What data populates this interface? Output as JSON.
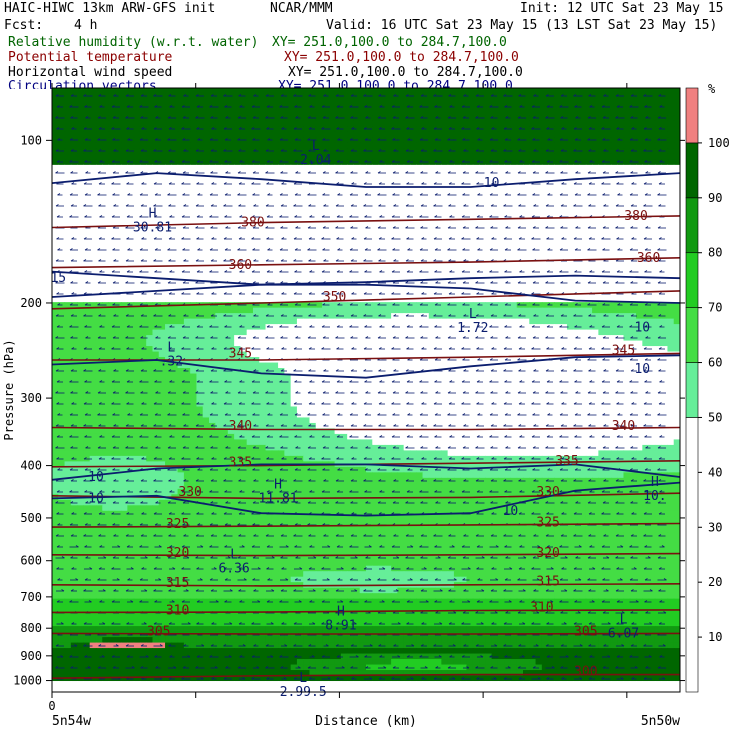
{
  "header": {
    "model": "HAIC-HIWC 13km ARW-GFS init",
    "org": "NCAR/MMM",
    "init": "Init: 12 UTC Sat 23 May 15",
    "fcst_label": "Fcst:",
    "fcst_value": "4 h",
    "valid": "Valid: 16 UTC Sat 23 May 15 (13 LST Sat 23 May 15)"
  },
  "fields": [
    {
      "name": "Relative humidity (w.r.t. water)",
      "xy": "XY= 251.0,100.0 to 284.7,100.0",
      "color": "#006400"
    },
    {
      "name": "Potential temperature",
      "xy": "XY= 251.0,100.0 to 284.7,100.0",
      "color": "#8b0000"
    },
    {
      "name": "Horizontal wind speed",
      "xy": "XY= 251.0,100.0 to 284.7,100.0",
      "color": "#000000"
    },
    {
      "name": "Circulation vectors",
      "xy": "XY= 251.0,100.0 to 284.7,100.0",
      "color": "#000080"
    }
  ],
  "chart_data": {
    "type": "heatmap",
    "title": "",
    "ylabel": "Pressure (hPa)",
    "xlabel": "Distance (km)",
    "x_start_value": "0",
    "x_left_label": "5n54w",
    "x_right_label": "5n50w",
    "y_scale": "log-pressure",
    "ylim": [
      1050,
      80
    ],
    "yticks": [
      100,
      200,
      300,
      400,
      500,
      600,
      700,
      800,
      900,
      1000
    ],
    "colorbar": {
      "unit": "%",
      "ticks": [
        10,
        20,
        30,
        40,
        50,
        60,
        70,
        80,
        90,
        100
      ],
      "bands": [
        {
          "from": 0,
          "to": 50,
          "color": "#ffffff"
        },
        {
          "from": 50,
          "to": 60,
          "color": "#66ee99"
        },
        {
          "from": 60,
          "to": 70,
          "color": "#44dd44"
        },
        {
          "from": 70,
          "to": 80,
          "color": "#22cc22"
        },
        {
          "from": 80,
          "to": 90,
          "color": "#119911"
        },
        {
          "from": 90,
          "to": 100,
          "color": "#006600"
        },
        {
          "from": 100,
          "to": 110,
          "color": "#f08080"
        }
      ]
    },
    "theta_contours": [
      {
        "value": "300",
        "p": [
          990,
          980,
          975,
          975
        ],
        "label_x": 0.85,
        "label_p": 962
      },
      {
        "value": "305",
        "p": [
          818,
          820,
          820,
          818
        ],
        "label_x": 0.17,
        "label_p": 812
      },
      {
        "value": "305",
        "p": [
          818,
          820,
          820,
          818
        ],
        "label_x": 0.85,
        "label_p": 812
      },
      {
        "value": "310",
        "p": [
          748,
          747,
          742,
          740
        ],
        "label_x": 0.2,
        "label_p": 742
      },
      {
        "value": "310",
        "p": [
          748,
          747,
          742,
          740
        ],
        "label_x": 0.78,
        "label_p": 732
      },
      {
        "value": "315",
        "p": [
          665,
          668,
          665,
          662
        ],
        "label_x": 0.2,
        "label_p": 660
      },
      {
        "value": "315",
        "p": [
          665,
          668,
          665,
          662
        ],
        "label_x": 0.79,
        "label_p": 655
      },
      {
        "value": "320",
        "p": [
          585,
          587,
          585,
          582
        ],
        "label_x": 0.2,
        "label_p": 580
      },
      {
        "value": "320",
        "p": [
          585,
          587,
          585,
          582
        ],
        "label_x": 0.79,
        "label_p": 580
      },
      {
        "value": "325",
        "p": [
          520,
          518,
          515,
          512
        ],
        "label_x": 0.2,
        "label_p": 513
      },
      {
        "value": "325",
        "p": [
          520,
          518,
          515,
          512
        ],
        "label_x": 0.79,
        "label_p": 510
      },
      {
        "value": "330",
        "p": [
          455,
          460,
          458,
          450
        ],
        "label_x": 0.22,
        "label_p": 448
      },
      {
        "value": "330",
        "p": [
          455,
          460,
          458,
          450
        ],
        "label_x": 0.79,
        "label_p": 448
      },
      {
        "value": "335",
        "p": [
          402,
          400,
          396,
          392
        ],
        "label_x": 0.3,
        "label_p": 395
      },
      {
        "value": "335",
        "p": [
          402,
          400,
          396,
          392
        ],
        "label_x": 0.82,
        "label_p": 392
      },
      {
        "value": "340",
        "p": [
          340,
          343,
          343,
          340
        ],
        "label_x": 0.3,
        "label_p": 338
      },
      {
        "value": "340",
        "p": [
          340,
          343,
          343,
          340
        ],
        "label_x": 0.91,
        "label_p": 338
      },
      {
        "value": "345",
        "p": [
          255,
          255,
          252,
          248
        ],
        "label_x": 0.3,
        "label_p": 248
      },
      {
        "value": "345",
        "p": [
          255,
          255,
          252,
          248
        ],
        "label_x": 0.91,
        "label_p": 245
      },
      {
        "value": "350",
        "p": [
          205,
          200,
          195,
          190
        ],
        "label_x": 0.45,
        "label_p": 195
      },
      {
        "value": "360",
        "p": [
          172,
          170,
          168,
          165
        ],
        "label_x": 0.3,
        "label_p": 170
      },
      {
        "value": "360",
        "p": [
          172,
          170,
          168,
          165
        ],
        "label_x": 0.95,
        "label_p": 165
      },
      {
        "value": "380",
        "p": [
          145,
          142,
          140,
          138
        ],
        "label_x": 0.32,
        "label_p": 142
      },
      {
        "value": "380",
        "p": [
          145,
          142,
          140,
          138
        ],
        "label_x": 0.93,
        "label_p": 138
      }
    ],
    "wind_contours": [
      {
        "value": "10",
        "p": [
          425,
          405,
          398,
          398,
          405,
          398,
          420
        ],
        "label_x": 0.07,
        "label_p": 420
      },
      {
        "value": "10",
        "p": [
          460,
          455,
          490,
          495,
          490,
          445,
          430
        ],
        "label_x": 0.07,
        "label_p": 460
      },
      {
        "value": "10",
        "p": [
          460,
          455,
          490,
          495,
          490,
          445,
          430
        ],
        "label_x": 0.73,
        "label_p": 485
      },
      {
        "value": "10",
        "p": [
          260,
          255,
          270,
          275,
          262,
          252,
          250
        ],
        "label_x": 0.94,
        "label_p": 265
      },
      {
        "value": "10",
        "p": [
          195,
          190,
          185,
          185,
          188,
          198,
          200
        ],
        "label_x": 0.94,
        "label_p": 222
      },
      {
        "value": "10",
        "p": [
          120,
          115,
          118,
          122,
          122,
          118,
          115
        ],
        "label_x": 0.7,
        "label_p": 120
      },
      {
        "value": "15",
        "p": [
          175,
          180,
          185,
          183,
          180,
          178,
          180
        ],
        "label_x": 0.01,
        "label_p": 180
      }
    ],
    "extrema": [
      {
        "kind": "L",
        "value": "2.04",
        "x": 0.42,
        "p": 105
      },
      {
        "kind": "H",
        "value": "30.81",
        "x": 0.16,
        "p": 140
      },
      {
        "kind": "L",
        "value": "1.72",
        "x": 0.67,
        "p": 215
      },
      {
        "kind": "L",
        "value": ".32",
        "x": 0.19,
        "p": 248
      },
      {
        "kind": "H",
        "value": "11.81",
        "x": 0.36,
        "p": 445
      },
      {
        "kind": "H",
        "value": "10.",
        "x": 0.96,
        "p": 440
      },
      {
        "kind": "L",
        "value": "6.36",
        "x": 0.29,
        "p": 600
      },
      {
        "kind": "H",
        "value": "8.91",
        "x": 0.46,
        "p": 765
      },
      {
        "kind": "L",
        "value": "6.07",
        "x": 0.91,
        "p": 790
      },
      {
        "kind": "L",
        "value": "2.99.5",
        "x": 0.4,
        "p": 1015
      }
    ]
  }
}
